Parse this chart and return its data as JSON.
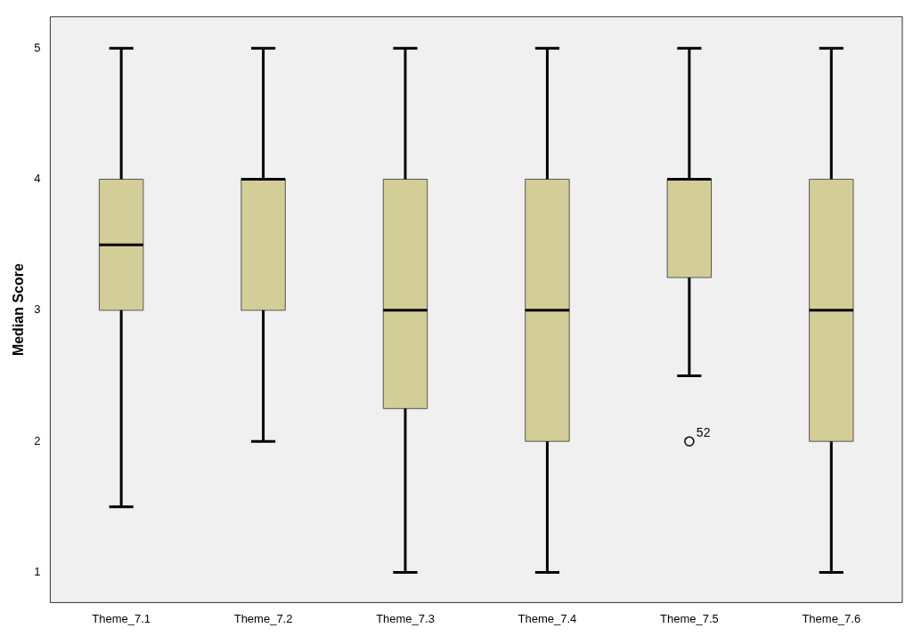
{
  "chart_data": {
    "type": "box",
    "ylabel": "Median Score",
    "categories": [
      "Theme_7.1",
      "Theme_7.2",
      "Theme_7.3",
      "Theme_7.4",
      "Theme_7.5",
      "Theme_7.6"
    ],
    "color": "#d3ce97",
    "ylim": [
      0.77,
      5.24
    ],
    "yticks": [
      1,
      2,
      3,
      4,
      5
    ],
    "boxes": [
      {
        "low": 1.5,
        "q1": 3,
        "median": 3.5,
        "q3": 4,
        "high": 5
      },
      {
        "low": 2,
        "q1": 3,
        "median": 4,
        "q3": 4,
        "high": 5
      },
      {
        "low": 1,
        "q1": 2.25,
        "median": 3,
        "q3": 4,
        "high": 5
      },
      {
        "low": 1,
        "q1": 2,
        "median": 3,
        "q3": 4,
        "high": 5
      },
      {
        "low": 2.5,
        "q1": 3.25,
        "median": 4,
        "q3": 4,
        "high": 5,
        "outliers": [
          2
        ]
      },
      {
        "low": 1,
        "q1": 2,
        "median": 3,
        "q3": 4,
        "high": 5
      }
    ],
    "annotations": [
      "52"
    ]
  }
}
